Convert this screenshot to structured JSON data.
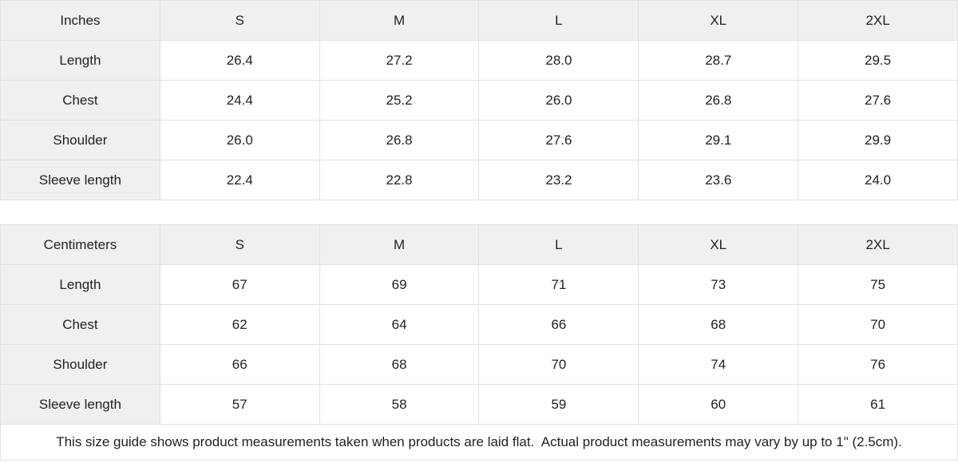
{
  "chart_data": [
    {
      "type": "table",
      "columns": [
        "Inches",
        "S",
        "M",
        "L",
        "XL",
        "2XL"
      ],
      "rows": [
        [
          "Length",
          "26.4",
          "27.2",
          "28.0",
          "28.7",
          "29.5"
        ],
        [
          "Chest",
          "24.4",
          "25.2",
          "26.0",
          "26.8",
          "27.6"
        ],
        [
          "Shoulder",
          "26.0",
          "26.8",
          "27.6",
          "29.1",
          "29.9"
        ],
        [
          "Sleeve length",
          "22.4",
          "22.8",
          "23.2",
          "23.6",
          "24.0"
        ]
      ]
    },
    {
      "type": "table",
      "columns": [
        "Centimeters",
        "S",
        "M",
        "L",
        "XL",
        "2XL"
      ],
      "rows": [
        [
          "Length",
          "67",
          "69",
          "71",
          "73",
          "75"
        ],
        [
          "Chest",
          "62",
          "64",
          "66",
          "68",
          "70"
        ],
        [
          "Shoulder",
          "66",
          "68",
          "70",
          "74",
          "76"
        ],
        [
          "Sleeve length",
          "57",
          "58",
          "59",
          "60",
          "61"
        ]
      ]
    }
  ],
  "footer": {
    "note": "This size guide shows product measurements taken when products are laid flat.  Actual product measurements may vary by up to 1\" (2.5cm)."
  },
  "colors": {
    "header_bg": "#f0f0f0",
    "border": "#e1e1e1",
    "text": "#222222",
    "background": "#ffffff"
  }
}
